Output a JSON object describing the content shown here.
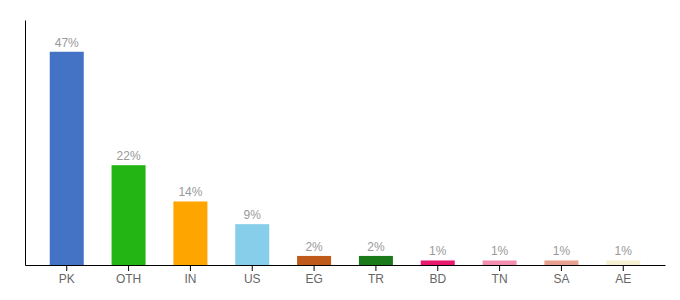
{
  "chart_data": {
    "type": "bar",
    "categories": [
      "PK",
      "OTH",
      "IN",
      "US",
      "EG",
      "TR",
      "BD",
      "TN",
      "SA",
      "AE"
    ],
    "values": [
      47,
      22,
      14,
      9,
      2,
      2,
      1,
      1,
      1,
      1
    ],
    "value_labels": [
      "47%",
      "22%",
      "14%",
      "9%",
      "2%",
      "2%",
      "1%",
      "1%",
      "1%",
      "1%"
    ],
    "colors": [
      "#4472c4",
      "#22b514",
      "#ffa500",
      "#87ceeb",
      "#c05a1a",
      "#1a7a1a",
      "#e8196e",
      "#f48fb1",
      "#e8a090",
      "#f5f0d0"
    ],
    "ylim": [
      0,
      54
    ],
    "data_labels": true,
    "tick_labels": "x",
    "grid": false
  }
}
